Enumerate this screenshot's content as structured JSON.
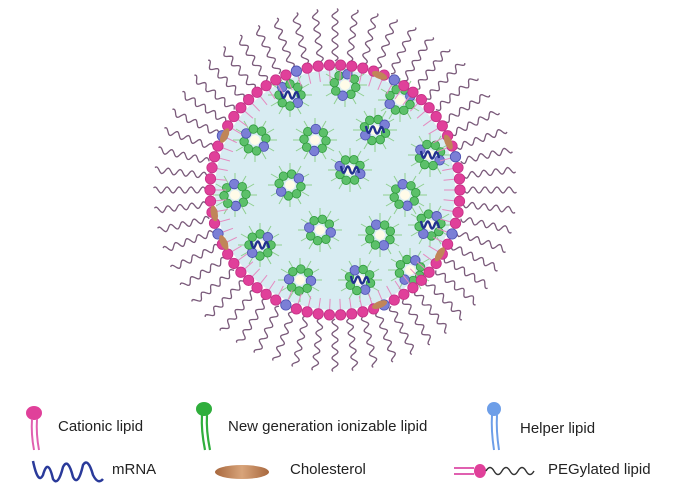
{
  "diagram": {
    "colors": {
      "cationic": "#e0409a",
      "ionizable": "#2fae3c",
      "helper": "#6d9ee8",
      "mrna": "#22318f",
      "cholesterol": "#c08558",
      "peg_chain": "#7a5a7a",
      "core": "#d8ecf2",
      "bead_blue": "#7b7fd6"
    }
  },
  "legend": {
    "items": [
      {
        "label": "Cationic lipid",
        "icon": "cationic-lipid-icon"
      },
      {
        "label": "New generation ionizable lipid",
        "icon": "ionizable-lipid-icon"
      },
      {
        "label": "Helper lipid",
        "icon": "helper-lipid-icon"
      },
      {
        "label": "mRNA",
        "icon": "mrna-icon"
      },
      {
        "label": "Cholesterol",
        "icon": "cholesterol-icon"
      },
      {
        "label": "PEGylated lipid",
        "icon": "pegylated-lipid-icon"
      }
    ]
  }
}
